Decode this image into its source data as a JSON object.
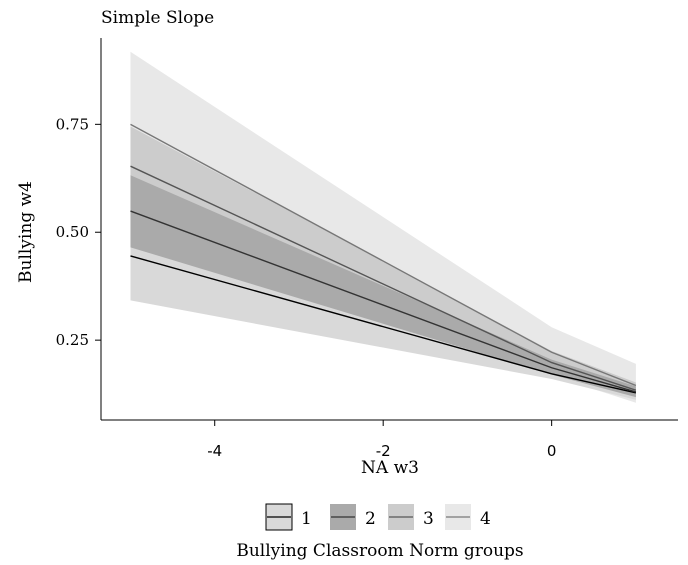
{
  "chart_data": {
    "type": "line",
    "title": "Simple Slope",
    "xlabel": "NA w3",
    "ylabel": "Bullying w4",
    "xlim": [
      -5.35,
      1.5
    ],
    "ylim": [
      0.065,
      0.95
    ],
    "x_ticks": [
      -4,
      -2,
      0
    ],
    "x_tick_labels": [
      "-4",
      "-2",
      "0"
    ],
    "y_ticks": [
      0.25,
      0.5,
      0.75
    ],
    "y_tick_labels": [
      "0.25",
      "0.50",
      "0.75"
    ],
    "grid": false,
    "legend": {
      "title": "Bullying Classroom Norm groups",
      "position": "bottom"
    },
    "series": [
      {
        "name": "1",
        "line_color": "#000000",
        "band_color": "#d9d9d9",
        "points": [
          {
            "x": -5,
            "y": 0.445,
            "lower": 0.342,
            "upper": 0.548
          },
          {
            "x": 0,
            "y": 0.172,
            "lower": 0.16,
            "upper": 0.185
          },
          {
            "x": 1,
            "y": 0.128,
            "lower": 0.112,
            "upper": 0.144
          }
        ]
      },
      {
        "name": "2",
        "line_color": "#333333",
        "band_color": "#aaaaaa",
        "points": [
          {
            "x": -5,
            "y": 0.549,
            "lower": 0.465,
            "upper": 0.632
          },
          {
            "x": 0,
            "y": 0.186,
            "lower": 0.17,
            "upper": 0.205
          },
          {
            "x": 1,
            "y": 0.13,
            "lower": 0.118,
            "upper": 0.143
          }
        ]
      },
      {
        "name": "3",
        "line_color": "#555555",
        "band_color": "#cccccc",
        "points": [
          {
            "x": -5,
            "y": 0.653,
            "lower": 0.575,
            "upper": 0.745
          },
          {
            "x": 0,
            "y": 0.198,
            "lower": 0.18,
            "upper": 0.225
          },
          {
            "x": 1,
            "y": 0.134,
            "lower": 0.118,
            "upper": 0.152
          }
        ]
      },
      {
        "name": "4",
        "line_color": "#777777",
        "band_color": "#e8e8e8",
        "points": [
          {
            "x": -5,
            "y": 0.75,
            "lower": 0.555,
            "upper": 0.918
          },
          {
            "x": 0,
            "y": 0.222,
            "lower": 0.168,
            "upper": 0.28
          },
          {
            "x": 1,
            "y": 0.145,
            "lower": 0.105,
            "upper": 0.195
          }
        ]
      }
    ]
  }
}
